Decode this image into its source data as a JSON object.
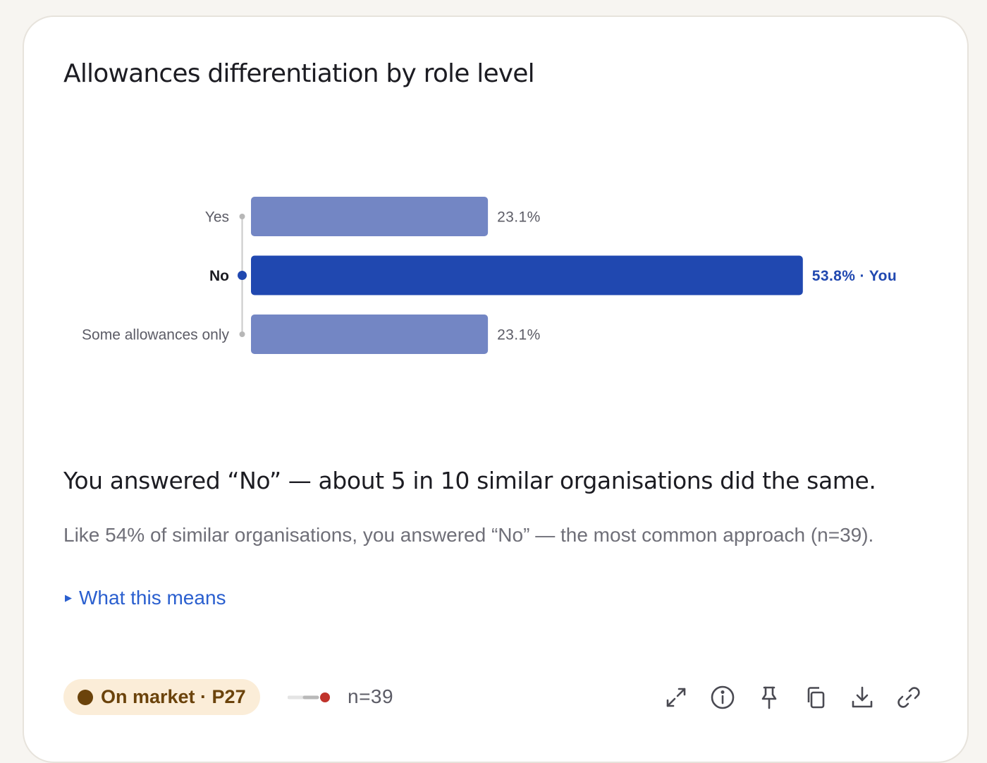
{
  "card": {
    "title": "Allowances differentiation by role level",
    "headline": "You answered “No” — about 5 in 10 similar organisations did the same.",
    "description": "Like 54% of similar organisations, you answered “No” — the most common approach (n=39).",
    "disclosure_label": "What this means"
  },
  "chart_data": {
    "type": "bar",
    "orientation": "horizontal",
    "categories": [
      "Yes",
      "No",
      "Some allowances only"
    ],
    "values": [
      23.1,
      53.8,
      23.1
    ],
    "value_labels": [
      "23.1%",
      "53.8% · You",
      "23.1%"
    ],
    "highlight_index": 1,
    "highlight_label": "You",
    "unit": "%",
    "xlim": [
      0,
      60
    ],
    "grid": false,
    "colors": {
      "default_bar": "#7386c4",
      "highlight_bar": "#2048b0",
      "highlight_text": "#2048b0",
      "axis_line": "#c9c9c9"
    }
  },
  "footer": {
    "badge": {
      "label": "On market · P27",
      "color": "#6b430b",
      "background": "#fbedd8"
    },
    "sample_size": "n=39",
    "sample_indicator_color": "#c0332b",
    "actions": [
      {
        "name": "expand-icon",
        "label": "expand"
      },
      {
        "name": "info-icon",
        "label": "info"
      },
      {
        "name": "pin-icon",
        "label": "pin"
      },
      {
        "name": "copy-icon",
        "label": "copy"
      },
      {
        "name": "download-icon",
        "label": "download"
      },
      {
        "name": "link-icon",
        "label": "link"
      }
    ]
  }
}
